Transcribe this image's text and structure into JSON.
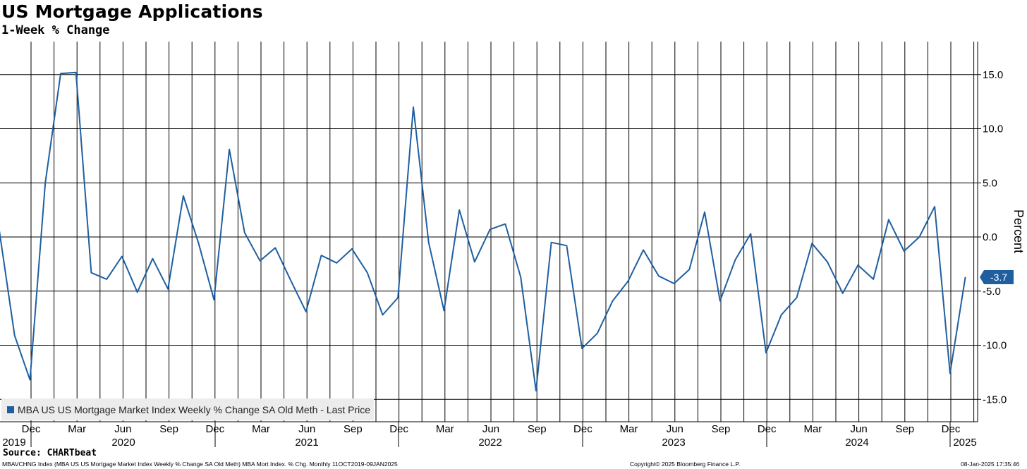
{
  "header": {
    "title": "US Mortgage Applications",
    "subtitle": "1-Week % Change"
  },
  "footer": {
    "source": "Source: CHARTbeat",
    "ticker_info": "MBAVCHNG Index (MBA US US Mortgage Market Index Weekly % Change SA Old Meth) MBA Mort Index. % Chg.  Monthly 11OCT2019-09JAN2025",
    "copyright": "Copyright© 2025 Bloomberg Finance L.P.",
    "timestamp": "08-Jan-2025 17:35:46"
  },
  "legend": {
    "label": "MBA US US Mortgage Market Index Weekly % Change SA Old Meth - Last Price"
  },
  "last_price_label": "-3.7",
  "colors": {
    "line": "#1f5fa0",
    "tag": "#1f5fa0"
  },
  "chart_data": {
    "type": "line",
    "title": "US Mortgage Applications",
    "subtitle": "1-Week % Change",
    "ylabel": "Percent",
    "ylim": [
      -17,
      18
    ],
    "y_ticks": [
      15.0,
      10.0,
      5.0,
      0.0,
      -5.0,
      -10.0,
      -15.0
    ],
    "y_tick_labels": [
      "15.0",
      "10.0",
      "5.0",
      "0.0",
      "-5.0",
      "-10.0",
      "-15.0"
    ],
    "x_month_labels": [
      "Dec",
      "Mar",
      "Jun",
      "Sep",
      "Dec",
      "Mar",
      "Jun",
      "Sep",
      "Dec",
      "Mar",
      "Jun",
      "Sep",
      "Dec",
      "Mar",
      "Jun",
      "Sep",
      "Dec",
      "Mar",
      "Jun",
      "Sep",
      "Dec"
    ],
    "x_year_labels": [
      "2019",
      "2020",
      "2021",
      "2022",
      "2023",
      "2024",
      "2025"
    ],
    "grid": true,
    "legend_position": "bottom-left",
    "series": [
      {
        "name": "MBA US US Mortgage Market Index Weekly % Change SA Old Meth - Last Price",
        "x": [
          "2019-10",
          "2019-11",
          "2019-12",
          "2020-01",
          "2020-02",
          "2020-03",
          "2020-04",
          "2020-05",
          "2020-06",
          "2020-07",
          "2020-08",
          "2020-09",
          "2020-10",
          "2020-11",
          "2020-12",
          "2021-01",
          "2021-02",
          "2021-03",
          "2021-04",
          "2021-05",
          "2021-06",
          "2021-07",
          "2021-08",
          "2021-09",
          "2021-10",
          "2021-11",
          "2021-12",
          "2022-01",
          "2022-02",
          "2022-03",
          "2022-04",
          "2022-05",
          "2022-06",
          "2022-07",
          "2022-08",
          "2022-09",
          "2022-10",
          "2022-11",
          "2022-12",
          "2023-01",
          "2023-02",
          "2023-03",
          "2023-04",
          "2023-05",
          "2023-06",
          "2023-07",
          "2023-08",
          "2023-09",
          "2023-10",
          "2023-11",
          "2023-12",
          "2024-01",
          "2024-02",
          "2024-03",
          "2024-04",
          "2024-05",
          "2024-06",
          "2024-07",
          "2024-08",
          "2024-09",
          "2024-10",
          "2024-11",
          "2024-12",
          "2025-01"
        ],
        "values": [
          0.6,
          -9.1,
          -13.2,
          5.0,
          15.1,
          15.2,
          -3.3,
          -3.9,
          -1.8,
          -5.1,
          -2.0,
          -4.8,
          3.8,
          -0.6,
          -5.8,
          8.1,
          0.4,
          -2.2,
          -1.0,
          -4.0,
          -6.9,
          -1.7,
          -2.4,
          -1.1,
          -3.3,
          -7.2,
          -5.6,
          12.0,
          -0.5,
          -6.8,
          2.5,
          -2.3,
          0.7,
          1.2,
          -3.7,
          -14.2,
          -0.5,
          -0.8,
          -10.3,
          -8.9,
          -5.9,
          -4.1,
          -1.2,
          -3.6,
          -4.3,
          -3.0,
          2.3,
          -5.9,
          -2.1,
          0.3,
          -10.7,
          -7.2,
          -5.6,
          -0.6,
          -2.3,
          -5.2,
          -2.6,
          -3.9,
          1.6,
          -1.3,
          0.0,
          2.8,
          -12.6,
          -3.7
        ]
      }
    ]
  }
}
